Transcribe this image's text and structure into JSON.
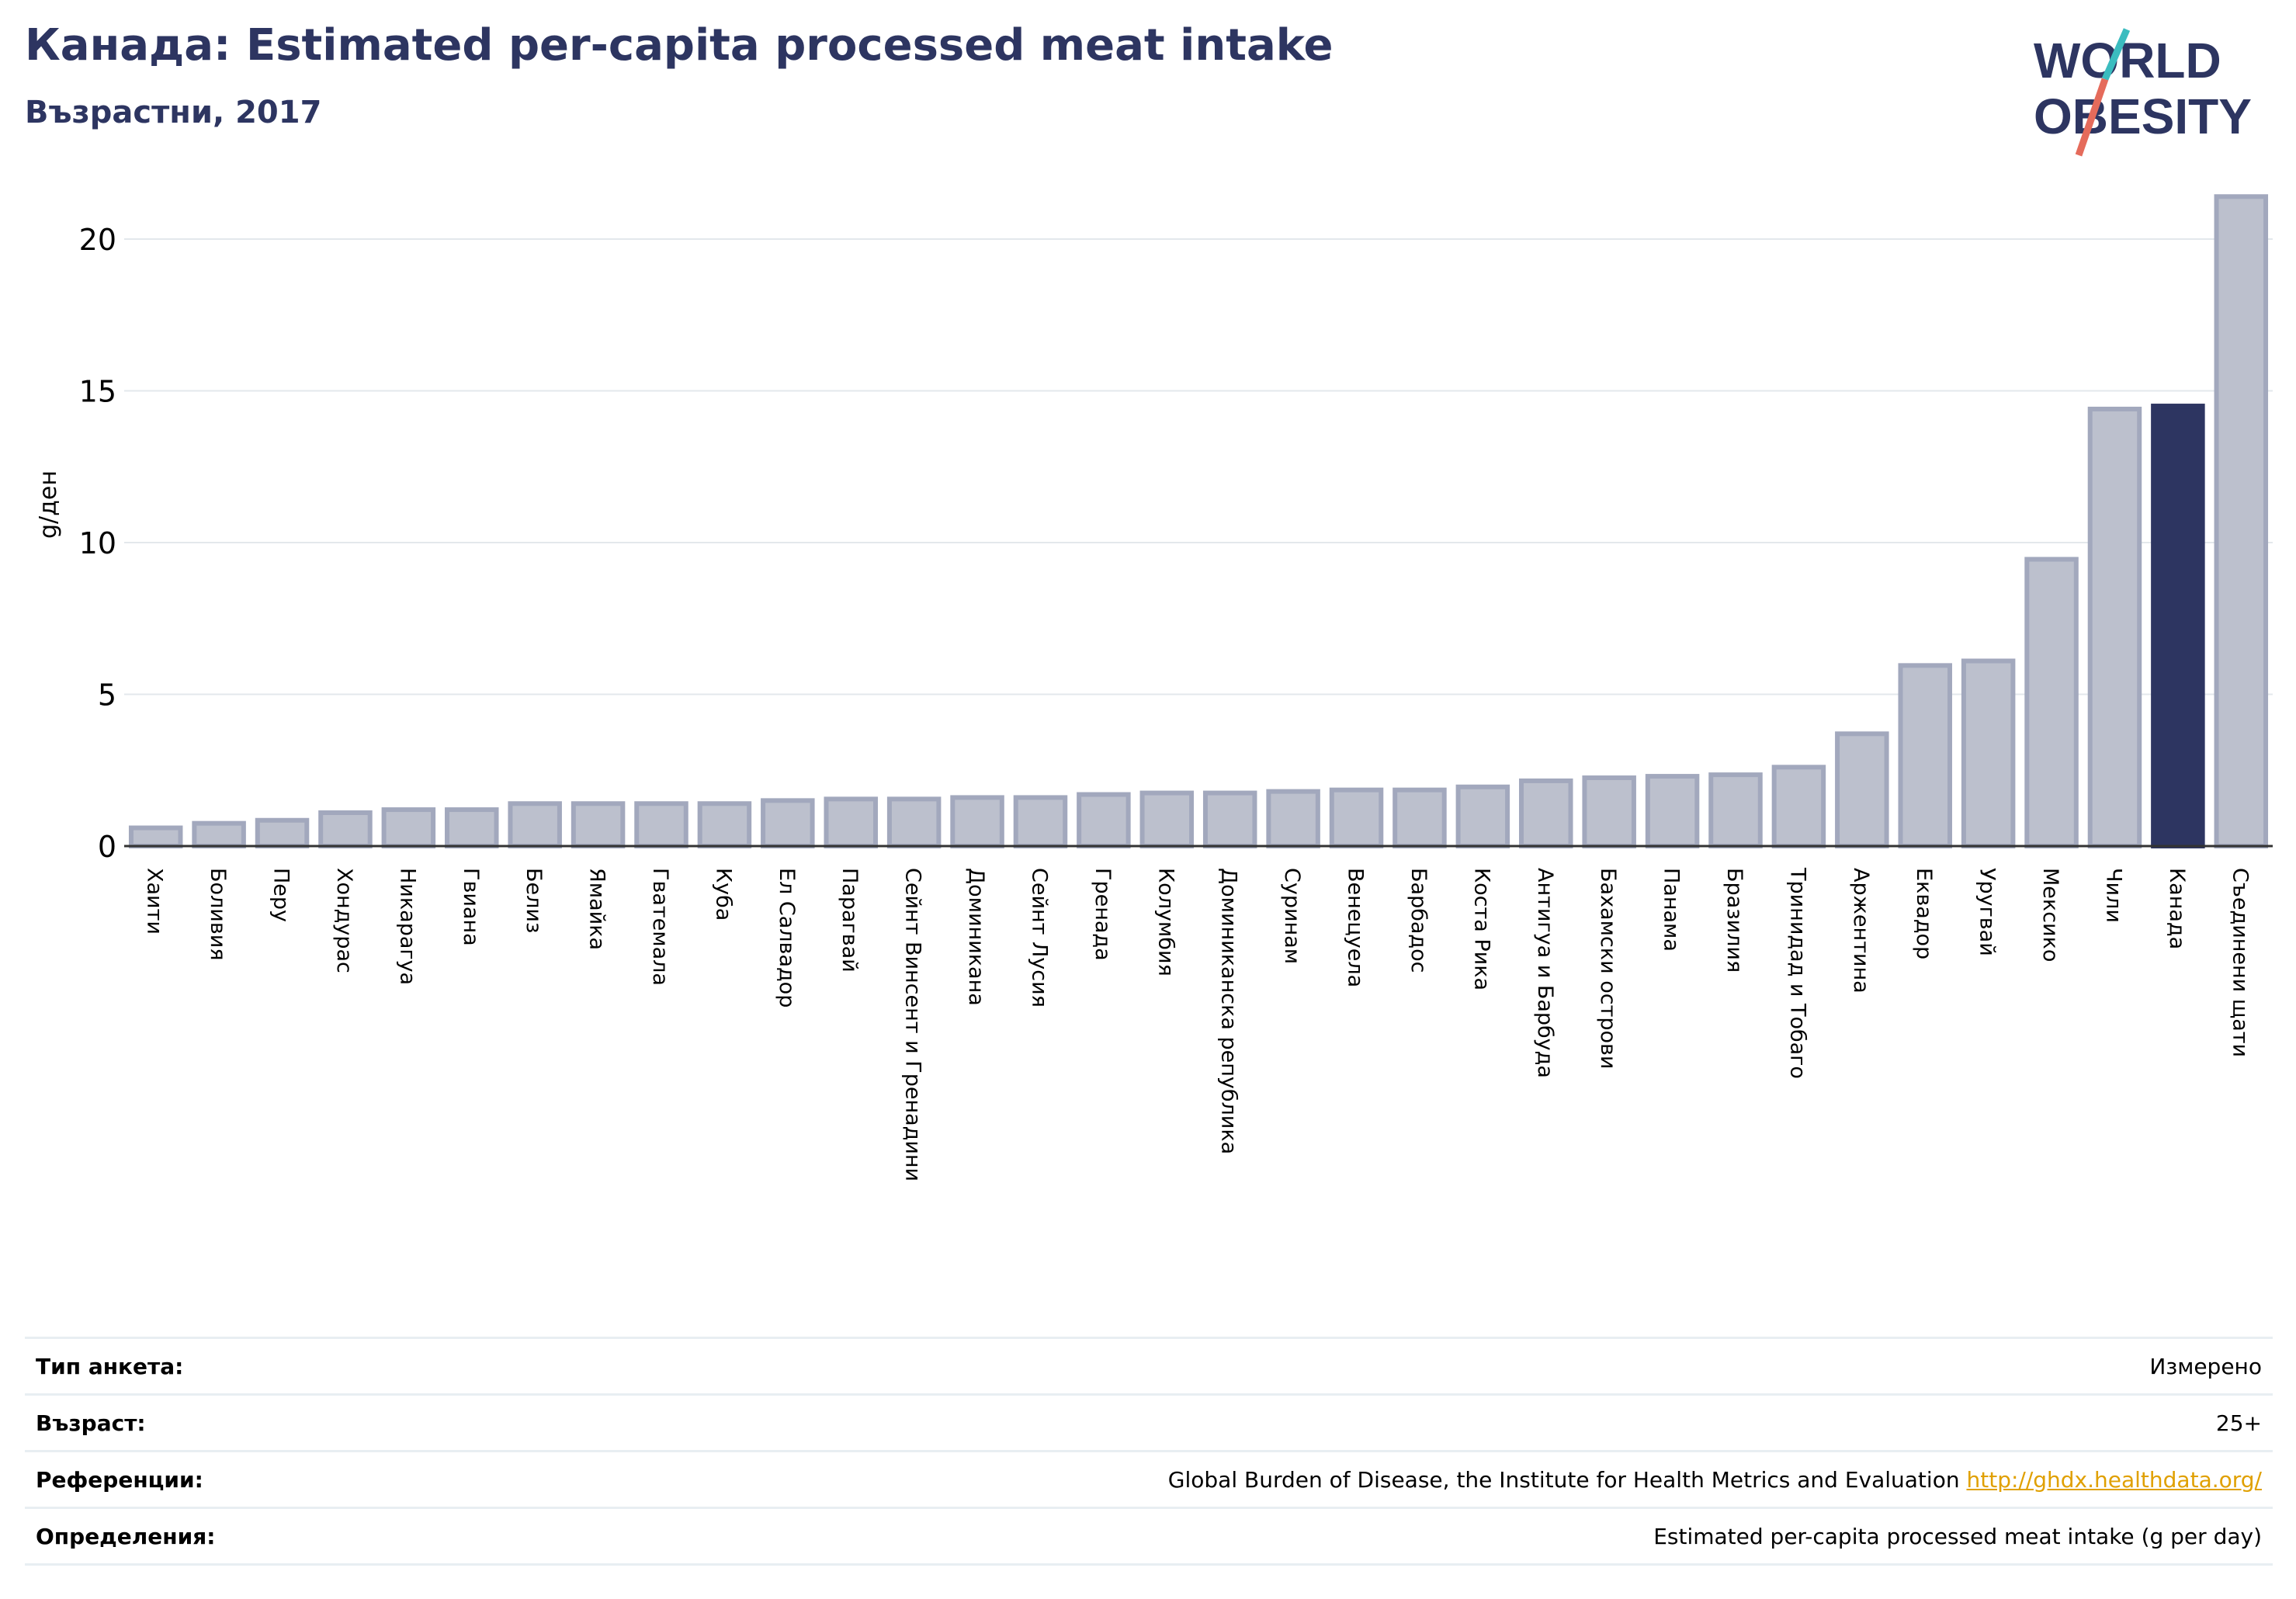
{
  "header": {
    "title": "Канада: Estimated per-capita processed meat intake",
    "subtitle": "Възрастни, 2017"
  },
  "logo": {
    "line1": "WORLD",
    "line2": "OBESITY"
  },
  "colors": {
    "bar_fill": "#bcc0cd",
    "bar_stroke": "#a2a8bd",
    "highlight": "#2d3561",
    "grid": "#e3e8ec",
    "text": "#000000",
    "title": "#2d3561",
    "logo_teal": "#3bbcbf",
    "logo_red": "#e56b5b"
  },
  "chart_data": {
    "type": "bar",
    "title": "Канада: Estimated per-capita processed meat intake",
    "subtitle": "Възрастни, 2017",
    "xlabel": "",
    "ylabel": "g/ден",
    "ylim": [
      0,
      22
    ],
    "yticks": [
      0,
      5,
      10,
      15,
      20
    ],
    "grid": true,
    "highlight": "Канада",
    "categories": [
      "Хаити",
      "Боливия",
      "Перу",
      "Хондурас",
      "Никарагуа",
      "Гвиана",
      "Белиз",
      "Ямайка",
      "Гватемала",
      "Куба",
      "Ел Салвадор",
      "Парагвай",
      "Сейнт Винсент и Гренадини",
      "Доминикана",
      "Сейнт Лусия",
      "Гренада",
      "Колумбия",
      "Доминиканска република",
      "Суринам",
      "Венецуела",
      "Барбадос",
      "Коста Рика",
      "Антигуа и Барбуда",
      "Бахамски острови",
      "Панама",
      "Бразилия",
      "Тринидад и Тобаго",
      "Аржентина",
      "Еквадор",
      "Уругвай",
      "Мексико",
      "Чили",
      "Канада",
      "Съединени щати"
    ],
    "values": [
      0.6,
      0.75,
      0.85,
      1.1,
      1.2,
      1.2,
      1.4,
      1.4,
      1.4,
      1.4,
      1.5,
      1.55,
      1.55,
      1.6,
      1.6,
      1.7,
      1.75,
      1.75,
      1.8,
      1.85,
      1.85,
      1.95,
      2.15,
      2.25,
      2.3,
      2.35,
      2.6,
      3.7,
      5.95,
      6.1,
      9.45,
      14.4,
      14.5,
      21.4
    ]
  },
  "footer": {
    "rows": [
      {
        "label": "Тип анкета:",
        "value": "Измерено"
      },
      {
        "label": "Възраст:",
        "value": "25+"
      },
      {
        "label": "Референции:",
        "value": "Global Burden of Disease, the Institute for Health Metrics and Evaluation",
        "link": "http://ghdx.healthdata.org/"
      },
      {
        "label": "Определения:",
        "value": "Estimated per-capita processed meat intake (g per day)"
      }
    ]
  }
}
